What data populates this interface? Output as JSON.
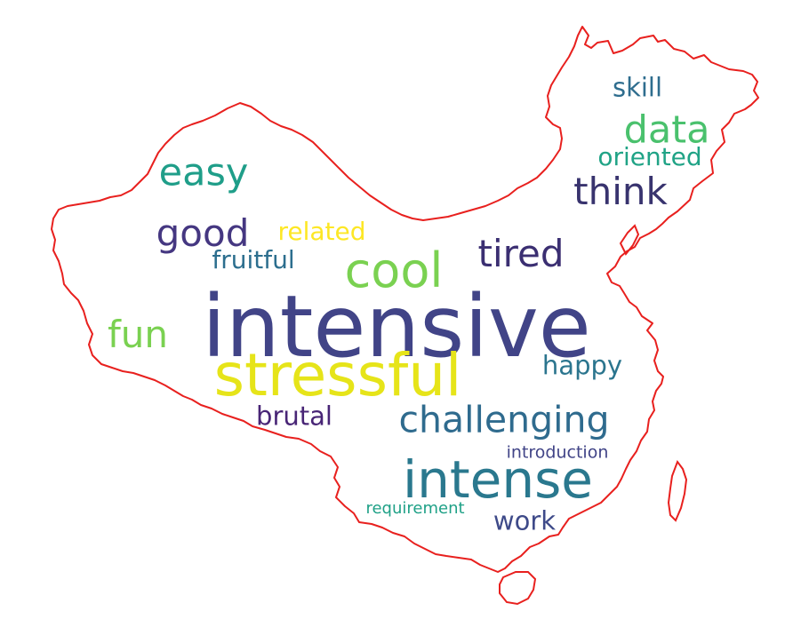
{
  "outline_color": "#e8201e",
  "words": {
    "intensive": "intensive",
    "stressful": "stressful",
    "intense": "intense",
    "cool": "cool",
    "challenging": "challenging",
    "data": "data",
    "easy": "easy",
    "think": "think",
    "good": "good",
    "tired": "tired",
    "fun": "fun",
    "fruitful": "fruitful",
    "related": "related",
    "happy": "happy",
    "brutal": "brutal",
    "skill": "skill",
    "oriented": "oriented",
    "work": "work",
    "introduction": "introduction",
    "requirement": "requirement"
  }
}
